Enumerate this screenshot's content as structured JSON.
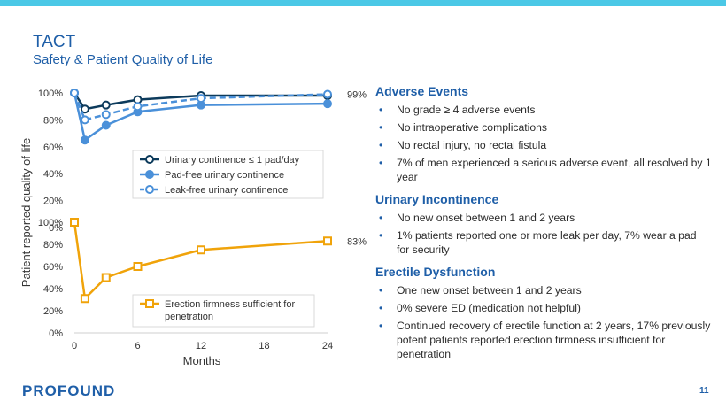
{
  "header": {
    "title": "TACT",
    "subtitle": "Safety & Patient Quality of Life"
  },
  "chart_data": [
    {
      "type": "line",
      "x": [
        0,
        1,
        3,
        6,
        12,
        24
      ],
      "xlim": [
        0,
        24
      ],
      "ylim": [
        0,
        100
      ],
      "yticks": [
        "0%",
        "20%",
        "40%",
        "60%",
        "80%",
        "100%"
      ],
      "legend_position": "center-right",
      "series": [
        {
          "name": "Urinary continence ≤ 1 pad/day",
          "values": [
            100,
            88,
            91,
            95,
            98,
            98
          ],
          "color": "#0d3b5c",
          "marker": "circle-open",
          "dash": "solid"
        },
        {
          "name": "Pad-free urinary continence",
          "values": [
            100,
            65,
            76,
            86,
            91,
            92
          ],
          "color": "#4a90d9",
          "marker": "circle-filled",
          "dash": "solid"
        },
        {
          "name": "Leak-free urinary continence",
          "values": [
            100,
            80,
            84,
            90,
            96,
            99
          ],
          "color": "#4a90d9",
          "marker": "circle-open",
          "dash": "dashed"
        }
      ],
      "annotations": [
        {
          "text": "99%",
          "x": 24,
          "y": 99
        }
      ]
    },
    {
      "type": "line",
      "x": [
        0,
        1,
        3,
        6,
        12,
        24
      ],
      "xlim": [
        0,
        24
      ],
      "ylim": [
        0,
        100
      ],
      "yticks": [
        "0%",
        "20%",
        "40%",
        "60%",
        "80%",
        "100%"
      ],
      "xticks": [
        "0",
        "6",
        "12",
        "18",
        "24"
      ],
      "xlabel": "Months",
      "ylabel": "Patient reported quality of life",
      "legend_position": "bottom-center",
      "series": [
        {
          "name": "Erection firmness sufficient for penetration",
          "values": [
            100,
            31,
            50,
            60,
            75,
            83
          ],
          "color": "#f0a30a",
          "marker": "square-open",
          "dash": "solid"
        }
      ],
      "annotations": [
        {
          "text": "83%",
          "x": 24,
          "y": 83
        }
      ]
    }
  ],
  "sections": [
    {
      "heading": "Adverse Events",
      "items": [
        "No grade ≥ 4 adverse events",
        "No intraoperative complications",
        "No rectal injury, no rectal fistula",
        "7% of men experienced a serious adverse event, all resolved by 1 year"
      ]
    },
    {
      "heading": "Urinary Incontinence",
      "items": [
        "No new onset between 1 and 2 years",
        "1% patients reported one or more leak per day, 7% wear a pad for security"
      ]
    },
    {
      "heading": "Erectile Dysfunction",
      "items": [
        "One new onset between 1 and 2 years",
        "0% severe ED (medication not helpful)",
        "Continued recovery of erectile function at 2 years, 17% previously potent patients reported erection firmness insufficient for penetration"
      ]
    }
  ],
  "footer": {
    "logo": "PROFOUND",
    "page_number": "11"
  }
}
